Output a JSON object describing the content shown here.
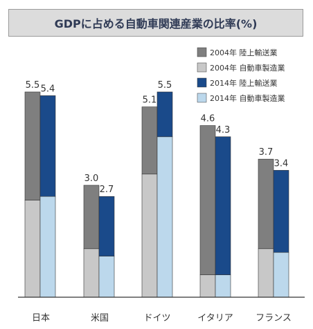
{
  "chart_data": {
    "type": "bar",
    "stacked": true,
    "title": "GDPに占める自動車関連産業の比率(%)",
    "categories": [
      "日本",
      "米国",
      "ドイツ",
      "イタリア",
      "フランス"
    ],
    "groups": [
      {
        "year": "2004年",
        "totals": [
          "5.5",
          "3.0",
          "5.1",
          "4.6",
          "3.7"
        ],
        "series": [
          {
            "name": "2004年 自動車製造業",
            "color": "#c8c8c8",
            "values": [
              2.6,
              1.3,
              3.3,
              0.6,
              1.3
            ]
          },
          {
            "name": "2004年 陸上輸送業",
            "color": "#7f7f7f",
            "values": [
              2.9,
              1.7,
              1.8,
              4.0,
              2.4
            ]
          }
        ]
      },
      {
        "year": "2014年",
        "totals": [
          "5.4",
          "2.7",
          "5.5",
          "4.3",
          "3.4"
        ],
        "series": [
          {
            "name": "2014年 自動車製造業",
            "color": "#bcd8ec",
            "values": [
              2.7,
              1.1,
              4.3,
              0.6,
              1.2
            ]
          },
          {
            "name": "2014年 陸上輸送業",
            "color": "#1a4a8a",
            "values": [
              2.7,
              1.6,
              1.2,
              3.7,
              2.2
            ]
          }
        ]
      }
    ],
    "legend": [
      {
        "label": "2004年 陸上輸送業",
        "color": "#7f7f7f"
      },
      {
        "label": "2004年 自動車製造業",
        "color": "#c8c8c8"
      },
      {
        "label": "2014年 陸上輸送業",
        "color": "#1a4a8a"
      },
      {
        "label": "2014年 自動車製造業",
        "color": "#bcd8ec"
      }
    ],
    "legend_position": "top-right",
    "ylim": [
      0,
      6.0
    ],
    "grid": false
  }
}
